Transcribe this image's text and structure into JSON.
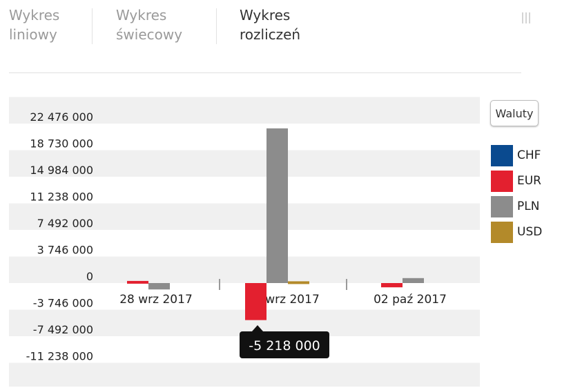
{
  "tabs": [
    {
      "label": "Wykres\nliniowy",
      "active": false
    },
    {
      "label": "Wykres\nświecowy",
      "active": false
    },
    {
      "label": "Wykres\nrozliczeń",
      "active": true
    }
  ],
  "legend_button_label": "Waluty",
  "colors": {
    "CHF": "#0a4a8f",
    "EUR": "#e3202f",
    "PLN": "#8c8c8c",
    "USD": "#b38a2a",
    "band": "#f0f0f0",
    "tooltip_bg": "#111111"
  },
  "legend": [
    {
      "name": "CHF",
      "color": "#0a4a8f"
    },
    {
      "name": "EUR",
      "color": "#e3202f"
    },
    {
      "name": "PLN",
      "color": "#8c8c8c"
    },
    {
      "name": "USD",
      "color": "#b38a2a"
    }
  ],
  "tooltip": {
    "text": "-5 218 000",
    "category_index": 1,
    "series": "EUR"
  },
  "chart_data": {
    "type": "bar",
    "categories": [
      "28 wrz 2017",
      "29 wrz 2017",
      "02 paź 2017"
    ],
    "y_ticks": [
      22476000,
      18730000,
      14984000,
      11238000,
      7492000,
      3746000,
      0,
      -3746000,
      -7492000,
      -11238000
    ],
    "y_tick_labels": [
      "22 476 000",
      "18 730 000",
      "14 984 000",
      "11 238 000",
      "7 492 000",
      "3 746 000",
      "0",
      "-3 746 000",
      "-7 492 000",
      "-11 238 000"
    ],
    "ylim": [
      -11238000,
      22476000
    ],
    "series": [
      {
        "name": "CHF",
        "values": [
          0,
          0,
          0
        ]
      },
      {
        "name": "EUR",
        "values": [
          300000,
          -5218000,
          -600000
        ]
      },
      {
        "name": "PLN",
        "values": [
          -900000,
          21800000,
          700000
        ]
      },
      {
        "name": "USD",
        "values": [
          0,
          250000,
          0
        ]
      }
    ],
    "title": "",
    "xlabel": "",
    "ylabel": "",
    "grid": "alternating horizontal bands",
    "legend_position": "right"
  }
}
